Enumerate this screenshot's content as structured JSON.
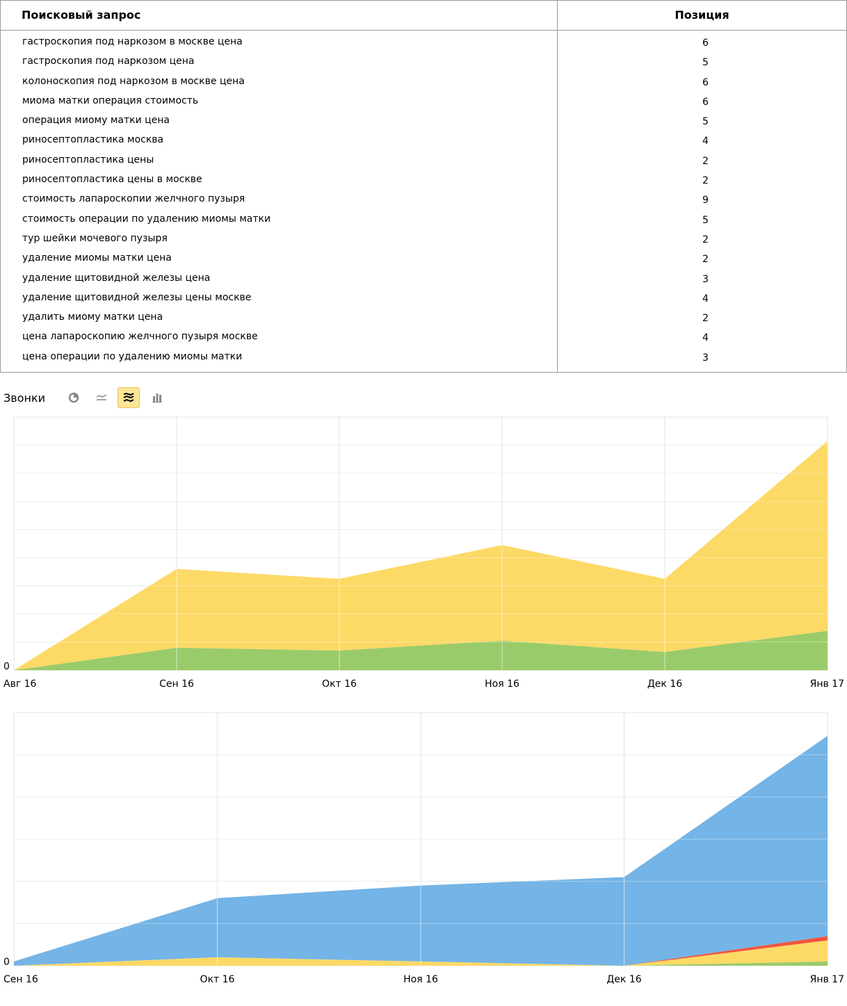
{
  "table": {
    "header": {
      "query": "Поисковый запрос",
      "position": "Позиция"
    },
    "rows": [
      {
        "query": "гастроскопия под наркозом в москве цена",
        "position": "6"
      },
      {
        "query": "гастроскопия под наркозом цена",
        "position": "5"
      },
      {
        "query": "колоноскопия под наркозом в москве цена",
        "position": "6"
      },
      {
        "query": "миома матки операция стоимость",
        "position": "6"
      },
      {
        "query": "операция миому матки цена",
        "position": "5"
      },
      {
        "query": "риносептопластика москва",
        "position": "4"
      },
      {
        "query": "риносептопластика цены",
        "position": "2"
      },
      {
        "query": "риносептопластика цены в москве",
        "position": "2"
      },
      {
        "query": "стоимость лапароскопии желчного пузыря",
        "position": "9"
      },
      {
        "query": "стоимость операции по удалению миомы матки",
        "position": "5"
      },
      {
        "query": "тур шейки мочевого пузыря",
        "position": "2"
      },
      {
        "query": "удаление миомы матки цена",
        "position": "2"
      },
      {
        "query": "удаление щитовидной железы цена",
        "position": "3"
      },
      {
        "query": "удаление щитовидной железы цены москве",
        "position": "4"
      },
      {
        "query": "удалить миому матки цена",
        "position": "2"
      },
      {
        "query": "цена лапароскопию желчного пузыря москве",
        "position": "4"
      },
      {
        "query": "цена операции по удалению миомы матки",
        "position": "3"
      }
    ]
  },
  "calls": {
    "title": "Звонки",
    "controls": [
      {
        "icon": "pie-chart-icon",
        "active": false
      },
      {
        "icon": "line-chart-icon",
        "active": false
      },
      {
        "icon": "stacked-area-icon",
        "active": true
      },
      {
        "icon": "bar-chart-icon",
        "active": false
      }
    ]
  },
  "chart_data": [
    {
      "type": "area",
      "stacked": true,
      "x": [
        "Авг 16",
        "Сен 16",
        "Окт 16",
        "Ноя 16",
        "Дек 16",
        "Янв 17"
      ],
      "y_tick_labels": [
        "0"
      ],
      "ylim": [
        0,
        9
      ],
      "grid": true,
      "series": [
        {
          "color": "#9acb6a",
          "values": [
            0,
            0.8,
            0.7,
            1.05,
            0.65,
            1.4
          ]
        },
        {
          "color": "#fdd966",
          "values": [
            0,
            2.8,
            2.55,
            3.4,
            2.6,
            6.75
          ]
        }
      ]
    },
    {
      "type": "area",
      "stacked": true,
      "x": [
        "Сен 16",
        "Окт 16",
        "Ноя 16",
        "Дек 16",
        "Янв 17"
      ],
      "y_tick_labels": [
        "0"
      ],
      "ylim": [
        0,
        6
      ],
      "grid": true,
      "series": [
        {
          "color": "#9acb6a",
          "values": [
            0,
            0,
            0,
            0,
            0.1
          ]
        },
        {
          "color": "#fdd966",
          "values": [
            0,
            0.2,
            0.1,
            0,
            0.5
          ]
        },
        {
          "color": "#f0563d",
          "values": [
            0,
            0,
            0,
            0,
            0.1
          ]
        },
        {
          "color": "#74b4e6",
          "values": [
            0.1,
            1.4,
            1.8,
            2.1,
            4.75
          ]
        }
      ]
    }
  ]
}
